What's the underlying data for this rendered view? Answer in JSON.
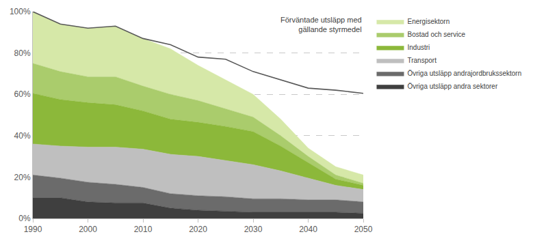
{
  "chart_data": {
    "type": "area",
    "stacked": true,
    "grid": true,
    "legend": "right",
    "x": [
      1990,
      1995,
      2000,
      2005,
      2010,
      2015,
      2020,
      2025,
      2030,
      2035,
      2040,
      2045,
      2050
    ],
    "xlim": [
      1990,
      2050
    ],
    "xticks": [
      1990,
      2000,
      2010,
      2020,
      2030,
      2040,
      2050
    ],
    "ylim": [
      0,
      100
    ],
    "yticks": [
      {
        "value": 0,
        "label": "0%"
      },
      {
        "value": 20,
        "label": "20%"
      },
      {
        "value": 40,
        "label": "40%"
      },
      {
        "value": 60,
        "label": "60%"
      },
      {
        "value": 80,
        "label": "80%"
      },
      {
        "value": 100,
        "label": "100%"
      }
    ],
    "series": [
      {
        "name": "Övriga utsläpp andra sektorer",
        "color": "#3f3f3f",
        "values": [
          10,
          10,
          8,
          7.5,
          7.5,
          5,
          4,
          3.5,
          3,
          3,
          3,
          3,
          2.5
        ]
      },
      {
        "name": "Övriga utsläpp andrajordbrukssektorn",
        "color": "#6b6b6b",
        "values": [
          11,
          9.5,
          9.5,
          9,
          7.5,
          7,
          7,
          7,
          6.5,
          6.5,
          6,
          6,
          5.5
        ]
      },
      {
        "name": "Transport",
        "color": "#bfbfbf",
        "values": [
          15,
          15.5,
          17,
          18,
          18.5,
          19,
          19,
          17.5,
          16.5,
          13.5,
          10.5,
          7,
          6
        ]
      },
      {
        "name": "Industri",
        "color": "#8cb83a",
        "values": [
          24.5,
          22.5,
          21.5,
          20.5,
          18.5,
          17,
          16.5,
          16.5,
          16,
          12,
          7.5,
          3,
          2
        ]
      },
      {
        "name": "Bostad och service",
        "color": "#aacc6c",
        "values": [
          14.5,
          13.5,
          12.5,
          13.5,
          12,
          12,
          10.5,
          8.5,
          7,
          5,
          3,
          2,
          1
        ]
      },
      {
        "name": "Energisektorn",
        "color": "#d6e8a8",
        "values": [
          25,
          23,
          23.5,
          24.5,
          23,
          22,
          17,
          14,
          11,
          8,
          4,
          4,
          4
        ]
      },
      {
        "name": "Förväntade utsläpp med gällande styrmedel",
        "color": "#595959",
        "type": "line",
        "values": [
          100,
          94,
          92,
          93,
          87,
          84,
          78,
          77,
          71,
          67,
          63,
          62,
          60.5
        ]
      }
    ]
  }
}
